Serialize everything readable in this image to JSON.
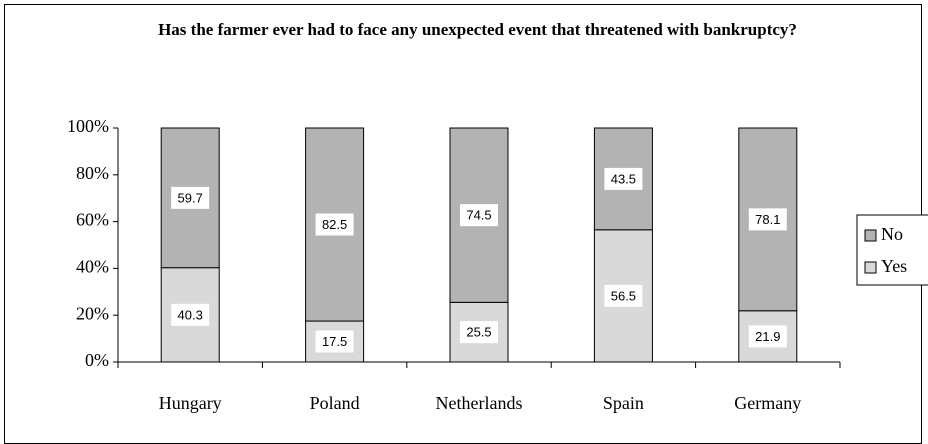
{
  "chart_data": {
    "type": "stacked-bar",
    "title": "Has the farmer ever had to face any unexpected event that threatened with bankruptcy?",
    "categories": [
      "Hungary",
      "Poland",
      "Netherlands",
      "Spain",
      "Germany"
    ],
    "series": [
      {
        "name": "Yes",
        "color": "#d9d9d9",
        "values": [
          40.3,
          17.5,
          25.5,
          56.5,
          21.9
        ]
      },
      {
        "name": "No",
        "color": "#b3b3b3",
        "values": [
          59.7,
          82.5,
          74.5,
          43.5,
          78.1
        ]
      }
    ],
    "ylim": [
      0,
      100
    ],
    "yticks": [
      {
        "value": 0,
        "label": "0%"
      },
      {
        "value": 20,
        "label": "20%"
      },
      {
        "value": 40,
        "label": "40%"
      },
      {
        "value": 60,
        "label": "60%"
      },
      {
        "value": 80,
        "label": "80%"
      },
      {
        "value": 100,
        "label": "100%"
      }
    ],
    "legend": "right"
  }
}
